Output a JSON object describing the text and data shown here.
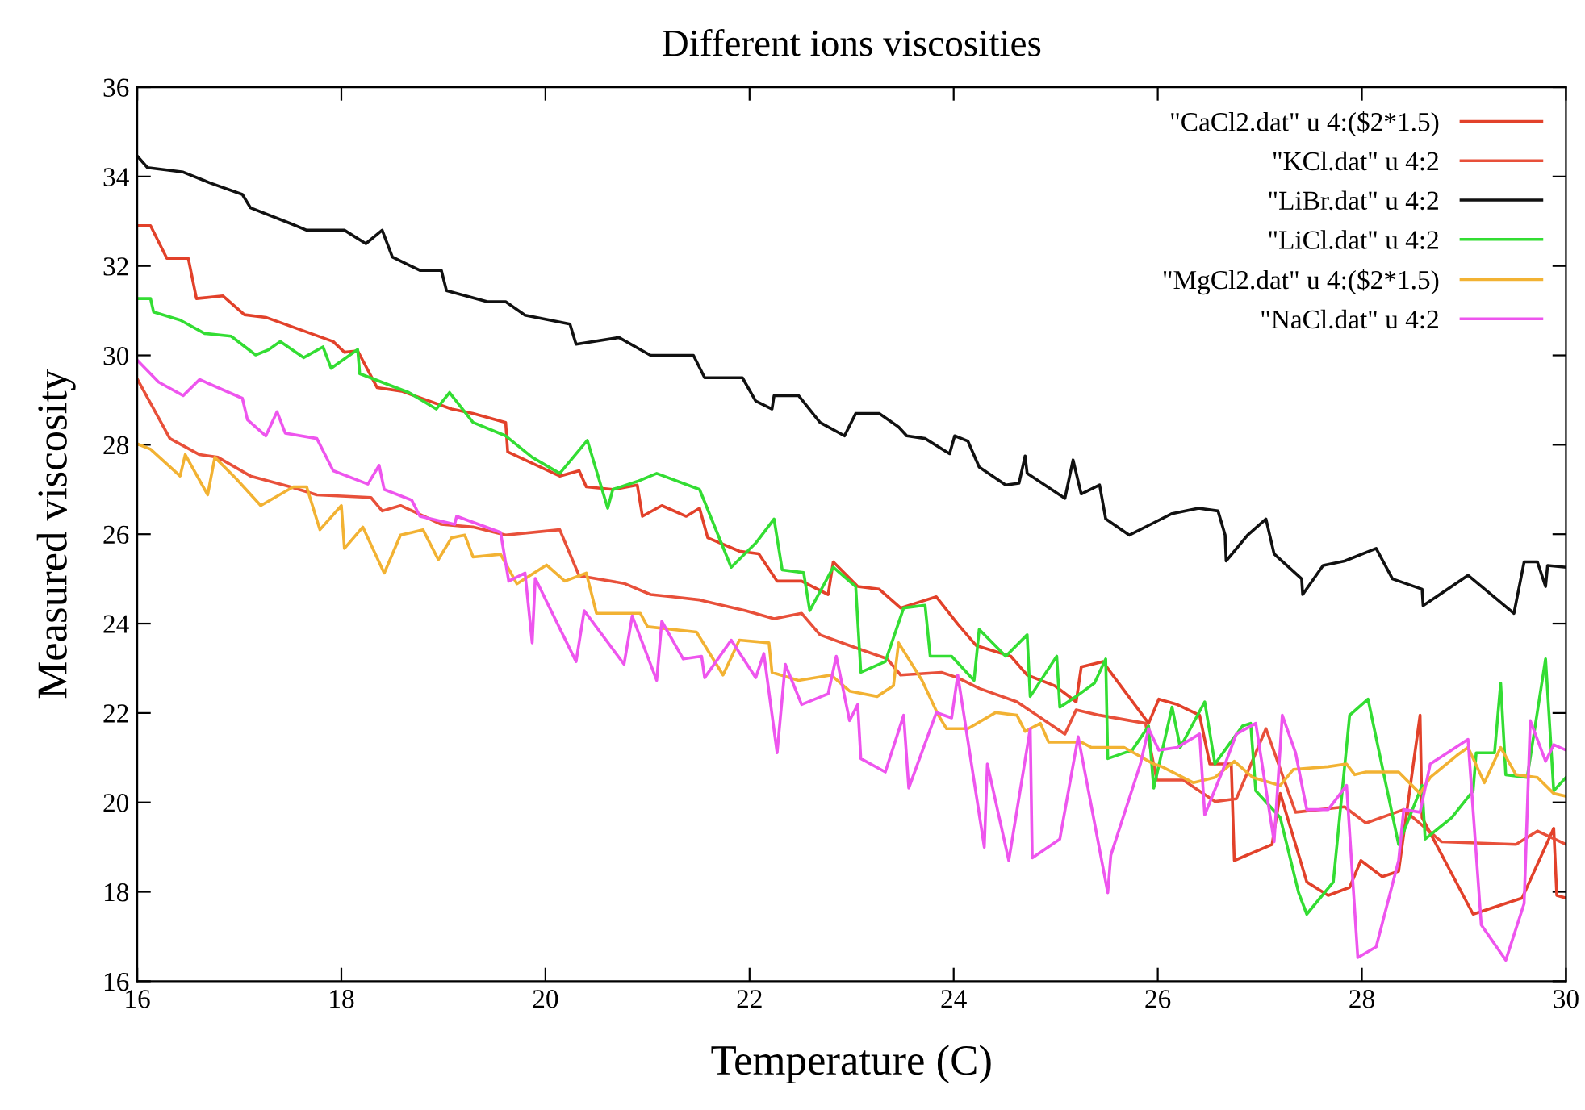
{
  "chart_data": {
    "type": "line",
    "title": "Different ions viscosities",
    "xlabel": "Temperature (C)",
    "ylabel": "Measured viscosity",
    "xlim": [
      16,
      30
    ],
    "ylim": [
      16,
      36
    ],
    "xticks": [
      16,
      18,
      20,
      22,
      24,
      26,
      28,
      30
    ],
    "yticks": [
      16,
      18,
      20,
      22,
      24,
      26,
      28,
      30,
      32,
      34,
      36
    ],
    "grid": false,
    "legend": "top right",
    "marker": "none",
    "line_style": "solid",
    "series": [
      {
        "name": "\"CaCl2.dat\" u 4:($2*1.5)",
        "color": "#e2412a",
        "x": [
          16.0,
          16.13,
          16.29,
          16.5,
          16.58,
          16.84,
          17.05,
          17.26,
          17.92,
          18.03,
          18.16,
          18.35,
          18.59,
          19.08,
          19.29,
          19.61,
          19.63,
          20.14,
          20.33,
          20.4,
          20.66,
          20.9,
          20.95,
          21.14,
          21.38,
          21.51,
          21.59,
          21.9,
          22.09,
          22.27,
          22.51,
          22.77,
          22.82,
          23.06,
          23.27,
          23.48,
          23.83,
          24.04,
          24.22,
          24.56,
          24.72,
          24.99,
          25.2,
          25.25,
          25.46,
          25.91,
          26.01,
          26.19,
          26.41,
          26.51,
          26.72,
          26.75,
          27.12,
          27.2,
          27.46,
          27.67,
          27.88,
          27.99,
          28.2,
          28.36,
          28.57,
          28.59,
          29.09,
          29.57,
          29.88,
          29.91,
          30.0
        ],
        "values": [
          32.9,
          32.9,
          32.17,
          32.17,
          31.27,
          31.33,
          30.91,
          30.85,
          30.31,
          30.07,
          30.1,
          29.28,
          29.2,
          28.8,
          28.7,
          28.5,
          27.84,
          27.3,
          27.42,
          27.06,
          27.0,
          27.1,
          26.4,
          26.64,
          26.4,
          26.58,
          25.92,
          25.62,
          25.56,
          24.95,
          24.95,
          24.65,
          25.38,
          24.83,
          24.77,
          24.35,
          24.6,
          23.99,
          23.51,
          23.27,
          22.85,
          22.61,
          22.25,
          23.03,
          23.15,
          21.77,
          22.31,
          22.19,
          21.95,
          20.86,
          20.86,
          18.7,
          19.06,
          20.2,
          18.22,
          17.92,
          18.1,
          18.7,
          18.34,
          18.46,
          21.95,
          19.66,
          17.5,
          17.86,
          19.42,
          17.92,
          17.86
        ]
      },
      {
        "name": "\"KCl.dat\" u 4:2",
        "color": "#e8503a",
        "x": [
          16.0,
          16.32,
          16.61,
          16.79,
          17.11,
          17.5,
          17.76,
          18.29,
          18.4,
          18.58,
          18.98,
          19.29,
          19.61,
          20.14,
          20.33,
          20.77,
          21.03,
          21.24,
          21.51,
          21.96,
          22.24,
          22.51,
          22.69,
          22.98,
          23.35,
          23.48,
          23.88,
          24.04,
          24.25,
          24.62,
          25.09,
          25.2,
          25.43,
          25.88,
          25.99,
          26.25,
          26.56,
          26.77,
          27.06,
          27.35,
          27.83,
          28.04,
          28.41,
          28.78,
          29.51,
          29.72,
          30.0
        ],
        "values": [
          29.47,
          28.14,
          27.78,
          27.72,
          27.3,
          27.06,
          26.88,
          26.82,
          26.52,
          26.64,
          26.22,
          26.16,
          25.98,
          26.1,
          25.07,
          24.9,
          24.65,
          24.6,
          24.53,
          24.29,
          24.11,
          24.23,
          23.75,
          23.51,
          23.21,
          22.85,
          22.91,
          22.79,
          22.55,
          22.25,
          21.53,
          22.07,
          21.95,
          21.77,
          20.5,
          20.5,
          20.02,
          20.08,
          21.65,
          19.78,
          19.9,
          19.54,
          19.84,
          19.12,
          19.06,
          19.36,
          19.06
        ]
      },
      {
        "name": "\"LiBr.dat\" u 4:2",
        "color": "#111111",
        "x": [
          16.0,
          16.1,
          16.45,
          16.71,
          17.03,
          17.11,
          17.5,
          17.66,
          18.03,
          18.24,
          18.4,
          18.5,
          18.77,
          18.98,
          19.03,
          19.43,
          19.61,
          19.8,
          20.24,
          20.3,
          20.72,
          21.03,
          21.45,
          21.56,
          21.93,
          22.06,
          22.22,
          22.24,
          22.48,
          22.69,
          22.93,
          23.04,
          23.27,
          23.46,
          23.54,
          23.72,
          23.96,
          24.01,
          24.14,
          24.25,
          24.51,
          24.64,
          24.7,
          24.72,
          25.09,
          25.17,
          25.25,
          25.43,
          25.49,
          25.72,
          25.93,
          26.14,
          26.4,
          26.59,
          26.66,
          26.67,
          26.88,
          27.06,
          27.14,
          27.41,
          27.42,
          27.62,
          27.83,
          28.14,
          28.3,
          28.59,
          28.6,
          29.04,
          29.49,
          29.59,
          29.72,
          29.8,
          29.82,
          30.0
        ],
        "values": [
          34.46,
          34.2,
          34.1,
          33.86,
          33.6,
          33.3,
          32.95,
          32.8,
          32.8,
          32.5,
          32.8,
          32.2,
          31.9,
          31.9,
          31.45,
          31.2,
          31.2,
          30.9,
          30.7,
          30.25,
          30.4,
          30.0,
          30.0,
          29.5,
          29.5,
          28.98,
          28.8,
          29.1,
          29.1,
          28.5,
          28.2,
          28.7,
          28.7,
          28.4,
          28.2,
          28.14,
          27.8,
          28.2,
          28.08,
          27.5,
          27.1,
          27.14,
          27.75,
          27.36,
          26.8,
          27.66,
          26.9,
          27.1,
          26.34,
          25.98,
          26.22,
          26.46,
          26.58,
          26.52,
          25.98,
          25.4,
          25.98,
          26.34,
          25.56,
          25.0,
          24.65,
          25.3,
          25.4,
          25.68,
          25.0,
          24.77,
          24.4,
          25.08,
          24.23,
          25.38,
          25.38,
          24.83,
          25.3,
          25.26
        ]
      },
      {
        "name": "\"LiCl.dat\" u 4:2",
        "color": "#33dd33",
        "x": [
          16.0,
          16.13,
          16.16,
          16.42,
          16.66,
          16.92,
          17.16,
          17.29,
          17.4,
          17.63,
          17.82,
          17.9,
          18.16,
          18.18,
          18.66,
          18.93,
          19.06,
          19.29,
          19.61,
          19.87,
          20.14,
          20.41,
          20.61,
          20.66,
          20.9,
          21.09,
          21.51,
          21.82,
          22.06,
          22.24,
          22.32,
          22.53,
          22.59,
          22.82,
          23.04,
          23.09,
          23.33,
          23.51,
          23.72,
          23.77,
          23.98,
          24.2,
          24.25,
          24.51,
          24.72,
          24.75,
          25.01,
          25.04,
          25.2,
          25.38,
          25.49,
          25.51,
          25.75,
          25.91,
          25.96,
          26.14,
          26.22,
          26.46,
          26.56,
          26.83,
          26.91,
          26.96,
          27.2,
          27.38,
          27.46,
          27.72,
          27.88,
          28.06,
          28.36,
          28.59,
          28.62,
          28.88,
          29.09,
          29.12,
          29.3,
          29.36,
          29.41,
          29.62,
          29.8,
          29.88,
          30.0
        ],
        "values": [
          31.27,
          31.27,
          30.97,
          30.79,
          30.49,
          30.43,
          30.01,
          30.13,
          30.31,
          29.95,
          30.19,
          29.71,
          30.13,
          29.59,
          29.17,
          28.8,
          29.17,
          28.5,
          28.2,
          27.72,
          27.36,
          28.1,
          26.58,
          27.0,
          27.18,
          27.36,
          27.0,
          25.26,
          25.8,
          26.34,
          25.2,
          25.14,
          24.29,
          25.26,
          24.83,
          22.91,
          23.15,
          24.35,
          24.41,
          23.27,
          23.27,
          22.73,
          23.87,
          23.27,
          23.75,
          22.37,
          23.27,
          22.13,
          22.37,
          22.67,
          23.21,
          20.98,
          21.17,
          21.71,
          20.32,
          22.13,
          21.23,
          22.25,
          20.86,
          21.71,
          21.77,
          20.26,
          19.66,
          17.98,
          17.5,
          18.22,
          21.95,
          22.31,
          19.06,
          20.38,
          19.18,
          19.66,
          20.26,
          21.11,
          21.11,
          22.67,
          20.62,
          20.56,
          23.21,
          20.26,
          20.56
        ]
      },
      {
        "name": "\"MgCl2.dat\" u 4:($2*1.5)",
        "color": "#f2b233",
        "x": [
          16.0,
          16.13,
          16.42,
          16.47,
          16.69,
          16.76,
          16.97,
          17.21,
          17.53,
          17.66,
          17.79,
          18.0,
          18.03,
          18.21,
          18.42,
          18.58,
          18.8,
          18.95,
          19.08,
          19.21,
          19.29,
          19.56,
          19.72,
          20.01,
          20.19,
          20.4,
          20.5,
          20.93,
          21.0,
          21.48,
          21.74,
          21.9,
          22.19,
          22.22,
          22.48,
          22.8,
          22.98,
          23.25,
          23.41,
          23.46,
          23.69,
          23.85,
          23.93,
          24.14,
          24.41,
          24.62,
          24.7,
          24.85,
          24.93,
          25.25,
          25.35,
          25.67,
          25.96,
          26.04,
          26.35,
          26.56,
          26.75,
          26.93,
          27.2,
          27.33,
          27.67,
          27.85,
          27.93,
          28.04,
          28.36,
          28.57,
          28.67,
          28.93,
          29.04,
          29.2,
          29.36,
          29.51,
          29.72,
          29.88,
          30.0
        ],
        "values": [
          28.02,
          27.9,
          27.3,
          27.78,
          26.88,
          27.72,
          27.24,
          26.64,
          27.06,
          27.06,
          26.1,
          26.64,
          25.68,
          26.16,
          25.13,
          25.98,
          26.1,
          25.43,
          25.92,
          25.98,
          25.49,
          25.55,
          24.89,
          25.31,
          24.95,
          25.13,
          24.23,
          24.23,
          23.93,
          23.81,
          22.85,
          23.63,
          23.57,
          22.91,
          22.73,
          22.85,
          22.49,
          22.37,
          22.61,
          23.57,
          22.73,
          21.95,
          21.65,
          21.65,
          22.01,
          21.95,
          21.59,
          21.77,
          21.35,
          21.35,
          21.23,
          21.23,
          20.86,
          20.8,
          20.44,
          20.56,
          20.92,
          20.56,
          20.38,
          20.74,
          20.8,
          20.86,
          20.62,
          20.68,
          20.68,
          20.2,
          20.56,
          21.05,
          21.23,
          20.44,
          21.23,
          20.62,
          20.56,
          20.2,
          20.14
        ]
      },
      {
        "name": "\"NaCl.dat\" u 4:2",
        "color": "#ee55ee",
        "x": [
          16.0,
          16.21,
          16.45,
          16.61,
          17.03,
          17.08,
          17.26,
          17.37,
          17.45,
          17.76,
          17.92,
          18.26,
          18.37,
          18.42,
          18.69,
          18.77,
          19.11,
          19.13,
          19.56,
          19.64,
          19.8,
          19.87,
          19.9,
          20.3,
          20.38,
          20.77,
          20.85,
          21.09,
          21.14,
          21.35,
          21.53,
          21.56,
          21.82,
          22.06,
          22.14,
          22.27,
          22.35,
          22.51,
          22.77,
          22.85,
          22.98,
          23.06,
          23.09,
          23.33,
          23.51,
          23.56,
          23.83,
          23.98,
          24.04,
          24.3,
          24.33,
          24.54,
          24.75,
          24.77,
          25.04,
          25.22,
          25.51,
          25.54,
          25.83,
          25.91,
          26.01,
          26.19,
          26.41,
          26.46,
          26.64,
          26.77,
          26.96,
          27.14,
          27.22,
          27.35,
          27.46,
          27.67,
          27.85,
          27.96,
          28.14,
          28.36,
          28.41,
          28.57,
          28.67,
          29.04,
          29.17,
          29.41,
          29.59,
          29.65,
          29.8,
          29.88,
          30.0
        ],
        "values": [
          29.89,
          29.4,
          29.1,
          29.46,
          29.04,
          28.56,
          28.2,
          28.74,
          28.26,
          28.14,
          27.42,
          27.12,
          27.54,
          27.0,
          26.76,
          26.4,
          26.22,
          26.4,
          26.04,
          24.95,
          25.13,
          23.57,
          25.01,
          23.15,
          24.29,
          23.09,
          24.17,
          22.73,
          24.05,
          23.21,
          23.27,
          22.79,
          23.63,
          22.79,
          23.33,
          21.11,
          23.09,
          22.19,
          22.43,
          23.27,
          21.83,
          22.19,
          20.98,
          20.68,
          21.95,
          20.32,
          22.01,
          21.89,
          22.85,
          19.0,
          20.86,
          18.7,
          21.65,
          18.76,
          19.18,
          21.47,
          17.98,
          18.82,
          20.86,
          21.65,
          21.17,
          21.23,
          21.53,
          19.72,
          20.74,
          21.53,
          21.77,
          19.12,
          21.95,
          21.11,
          19.84,
          19.84,
          20.38,
          16.53,
          16.77,
          18.7,
          19.84,
          19.78,
          20.86,
          21.41,
          17.26,
          16.47,
          17.74,
          21.83,
          20.92,
          21.29,
          21.17
        ]
      }
    ]
  }
}
